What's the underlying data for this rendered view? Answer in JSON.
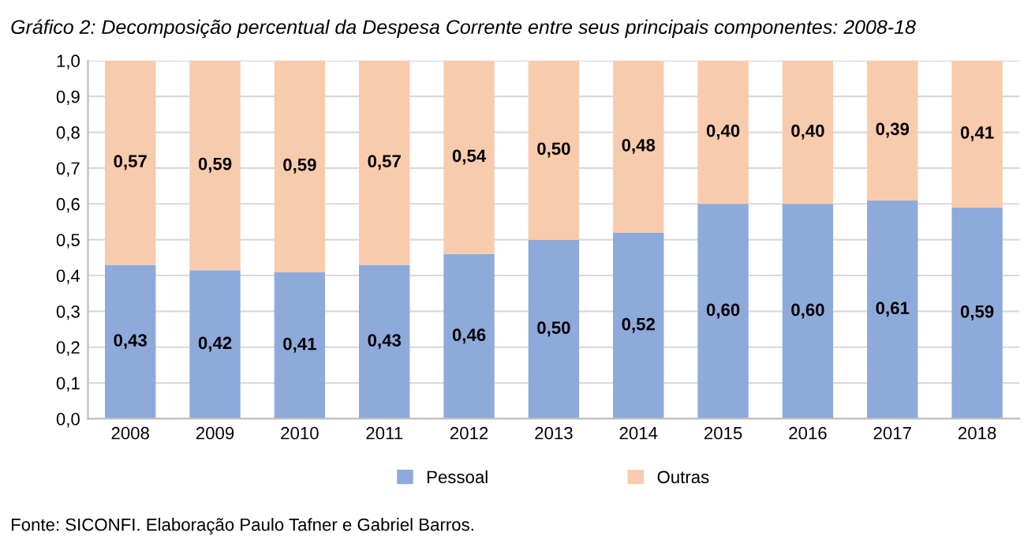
{
  "chart_data": {
    "type": "bar",
    "title": "Gráfico 2: Decomposição percentual da Despesa Corrente entre seus principais componentes: 2008-18",
    "categories": [
      "2008",
      "2009",
      "2010",
      "2011",
      "2012",
      "2013",
      "2014",
      "2015",
      "2016",
      "2017",
      "2018"
    ],
    "stacked": true,
    "series": [
      {
        "name": "Pessoal",
        "color": "#8eaadb",
        "values": [
          0.43,
          0.415,
          0.41,
          0.43,
          0.46,
          0.5,
          0.52,
          0.6,
          0.6,
          0.61,
          0.59
        ],
        "value_labels": [
          "0,43",
          "0,42",
          "0,41",
          "0,43",
          "0,46",
          "0,50",
          "0,52",
          "0,60",
          "0,60",
          "0,61",
          "0,59"
        ]
      },
      {
        "name": "Outras",
        "color": "#f8cbad",
        "values": [
          0.57,
          0.585,
          0.59,
          0.57,
          0.54,
          0.5,
          0.48,
          0.4,
          0.4,
          0.39,
          0.41
        ],
        "value_labels": [
          "0,57",
          "0,59",
          "0,59",
          "0,57",
          "0,54",
          "0,50",
          "0,48",
          "0,40",
          "0,40",
          "0,39",
          "0,41"
        ]
      }
    ],
    "ylim": [
      0,
      1.0
    ],
    "yticks": [
      {
        "value": 0,
        "label": "0,0"
      },
      {
        "value": 0.1,
        "label": "0,1"
      },
      {
        "value": 0.2,
        "label": "0,2"
      },
      {
        "value": 0.3,
        "label": "0,3"
      },
      {
        "value": 0.4,
        "label": "0,4"
      },
      {
        "value": 0.5,
        "label": "0,5"
      },
      {
        "value": 0.6,
        "label": "0,6"
      },
      {
        "value": 0.7,
        "label": "0,7"
      },
      {
        "value": 0.8,
        "label": "0,8"
      },
      {
        "value": 0.9,
        "label": "0,9"
      },
      {
        "value": 1.0,
        "label": "1,0"
      }
    ],
    "grid": "y",
    "legend": "bottom",
    "annotations": [
      "Fonte: SICONFI. Elaboração Paulo Tafner e Gabriel Barros."
    ]
  }
}
